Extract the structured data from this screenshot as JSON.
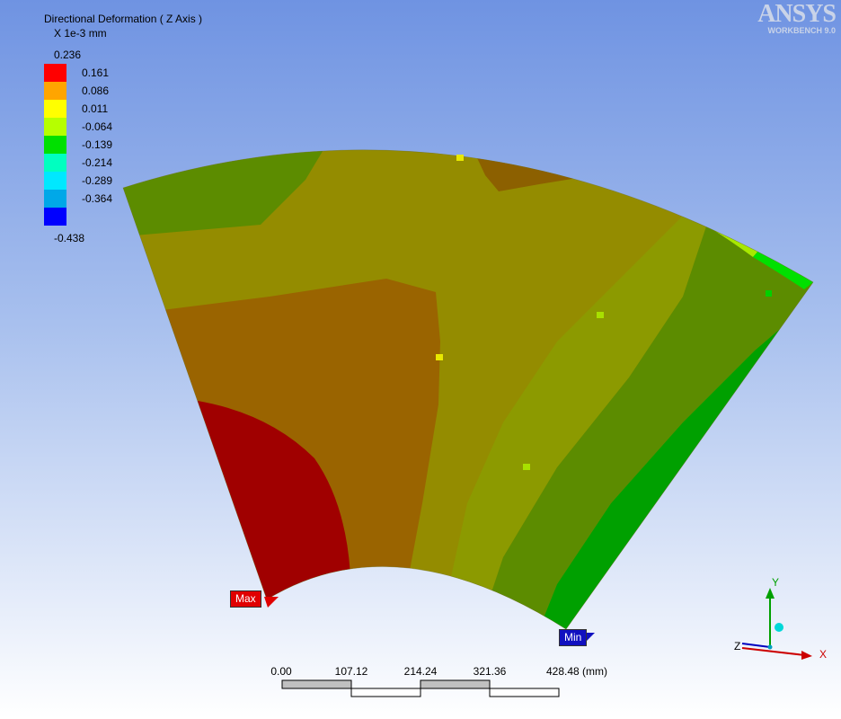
{
  "app": {
    "brand": "ANSYS",
    "version": "WORKBENCH 9.0"
  },
  "legend": {
    "title": "Directional Deformation ( Z Axis )",
    "units": "X 1e-3 mm",
    "max_label": "0.236",
    "min_label": "-0.438",
    "bands": [
      {
        "label": "0.161",
        "color": "#ff0000"
      },
      {
        "label": "0.086",
        "color": "#ffa500"
      },
      {
        "label": "0.011",
        "color": "#ffff00"
      },
      {
        "label": "-0.064",
        "color": "#b6ff00"
      },
      {
        "label": "-0.139",
        "color": "#00e000"
      },
      {
        "label": "-0.214",
        "color": "#00ffc0"
      },
      {
        "label": "-0.289",
        "color": "#00e8ff"
      },
      {
        "label": "-0.364",
        "color": "#00a8e8"
      },
      {
        "label": "",
        "color": "#0000ff"
      }
    ]
  },
  "probes": {
    "max_label": "Max",
    "min_label": "Min",
    "max_color": "#e00000",
    "min_color": "#1010c0"
  },
  "scale_bar": {
    "ticks": [
      "0.00",
      "107.12",
      "214.24",
      "321.36",
      "428.48 (mm)"
    ]
  },
  "triad": {
    "x_label": "X",
    "y_label": "Y",
    "z_label": "Z",
    "x_color": "#cc0000",
    "y_color": "#00a000",
    "z_color": "#00d8d8"
  },
  "contour_colors": {
    "red": "#a00000",
    "orange": "#9a6400",
    "olive": "#948c00",
    "yellow_green": "#8c9a00",
    "green_dark": "#5c8c00",
    "green": "#00a000",
    "teal": "#009c86",
    "cyan_dark": "#007ca0",
    "blue_dark": "#004c9c",
    "navy": "#000c9a"
  }
}
